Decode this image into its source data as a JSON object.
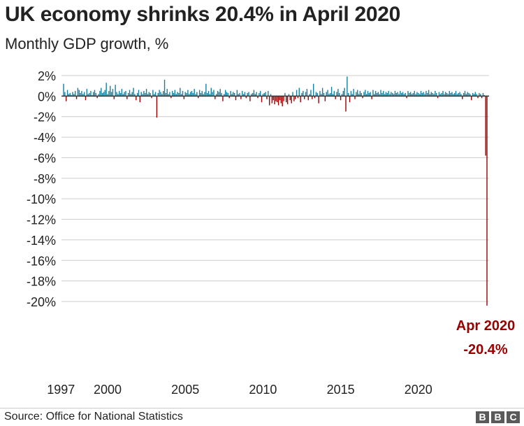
{
  "title": "UK economy shrinks 20.4% in April 2020",
  "subtitle": "Monthly GDP growth, %",
  "source": "Source: Office for National Statistics",
  "logo": [
    "B",
    "B",
    "C"
  ],
  "annotation": {
    "line1": "Apr 2020",
    "line2": "-20.4%"
  },
  "colors": {
    "positive": "#1380a1",
    "negative": "#990000",
    "grid": "#cccccc",
    "zero": "#333333",
    "annotation": "#990000"
  },
  "chart_data": {
    "type": "bar",
    "title": "UK economy shrinks 20.4% in April 2020",
    "subtitle": "Monthly GDP growth, %",
    "xlabel": "",
    "ylabel": "",
    "ylim": [
      -20,
      2
    ],
    "yticks": [
      2,
      0,
      -2,
      -4,
      -6,
      -8,
      -10,
      -12,
      -14,
      -16,
      -18,
      -20
    ],
    "ytick_labels": [
      "2%",
      "0%",
      "-2%",
      "-4%",
      "-6%",
      "-8%",
      "-10%",
      "-12%",
      "-14%",
      "-16%",
      "-18%",
      "-20%"
    ],
    "xtick_labels": [
      "1997",
      "2000",
      "2005",
      "2010",
      "2015",
      "2020"
    ],
    "xticks_year": [
      1997,
      2000,
      2005,
      2010,
      2015,
      2020
    ],
    "grid": true,
    "start": "1997-03",
    "values": [
      1.2,
      0.4,
      -0.5,
      0.6,
      0.2,
      0.3,
      0.1,
      0.4,
      0.2,
      0.5,
      -0.3,
      0.8,
      0.6,
      0.3,
      0.5,
      0.2,
      0.4,
      -0.4,
      0.7,
      0.2,
      0.3,
      0.5,
      0.1,
      0.4,
      0.6,
      0.3,
      -0.2,
      0.2,
      0.5,
      0.8,
      0.3,
      0.4,
      0.6,
      1.3,
      0.2,
      0.5,
      1.0,
      0.4,
      0.7,
      -0.3,
      1.1,
      0.4,
      0.2,
      0.5,
      0.3,
      0.7,
      0.2,
      0.4,
      0.5,
      -0.3,
      0.3,
      0.6,
      0.2,
      0.4,
      0.8,
      0.2,
      -0.4,
      0.3,
      0.6,
      -0.6,
      0.4,
      0.2,
      0.5,
      0.3,
      0.7,
      0.2,
      0.4,
      0.3,
      -0.2,
      0.6,
      0.2,
      0.4,
      -2.1,
      0.3,
      0.6,
      0.4,
      0.2,
      0.5,
      1.6,
      0.3,
      0.7,
      0.2,
      0.4,
      -0.2,
      0.5,
      0.3,
      0.6,
      0.2,
      0.4,
      0.3,
      0.8,
      0.2,
      0.5,
      -0.3,
      0.4,
      0.3,
      0.6,
      0.2,
      0.4,
      0.5,
      0.3,
      0.7,
      0.2,
      0.4,
      -0.2,
      0.6,
      0.3,
      0.5,
      0.2,
      0.4,
      1.2,
      0.3,
      0.5,
      0.2,
      0.8,
      0.4,
      0.6,
      -0.3,
      0.2,
      0.5,
      0.4,
      0.7,
      0.3,
      -0.5,
      0.2,
      0.6,
      0.4,
      0.3,
      -0.2,
      0.5,
      0.2,
      0.4,
      0.3,
      -0.4,
      0.6,
      0.2,
      0.3,
      -0.3,
      0.5,
      0.2,
      0.4,
      -0.2,
      0.3,
      0.4,
      -0.5,
      0.2,
      0.3,
      0.6,
      0.2,
      0.4,
      -0.2,
      0.3,
      0.5,
      -0.6,
      0.2,
      0.3,
      0.4,
      -0.3,
      0.5,
      -0.9,
      0.2,
      -0.7,
      -0.4,
      -0.8,
      -0.5,
      -0.6,
      -0.9,
      -0.4,
      -0.7,
      -1.0,
      -0.5,
      0.3,
      -0.6,
      -0.8,
      0.2,
      -0.4,
      -0.7,
      0.4,
      -0.5,
      -0.3,
      0.6,
      -0.2,
      0.8,
      -0.6,
      0.3,
      0.5,
      -0.3,
      0.4,
      0.7,
      -0.4,
      0.2,
      0.6,
      -0.3,
      1.2,
      -0.2,
      0.4,
      0.3,
      -0.7,
      0.5,
      0.2,
      0.8,
      0.3,
      -0.5,
      0.4,
      0.6,
      0.2,
      0.3,
      0.9,
      0.2,
      0.5,
      -0.3,
      0.4,
      0.7,
      0.3,
      -0.4,
      0.2,
      0.5,
      0.8,
      -1.5,
      1.9,
      0.3,
      -0.6,
      0.5,
      0.2,
      0.7,
      -0.3,
      0.4,
      0.6,
      0.2,
      0.5,
      0.3,
      -0.2,
      0.4,
      0.6,
      0.2,
      0.5,
      0.3,
      0.4,
      -0.3,
      0.6,
      0.2,
      0.5,
      0.3,
      0.4,
      0.2,
      0.6,
      0.3,
      0.5,
      0.2,
      0.4,
      0.3,
      0.5,
      0.2,
      0.4,
      0.3,
      0.2,
      0.5,
      0.3,
      0.4,
      0.2,
      0.5,
      0.3,
      0.4,
      0.2,
      0.3,
      -0.2,
      0.5,
      0.3,
      0.4,
      0.2,
      0.3,
      0.5,
      0.2,
      0.4,
      0.3,
      0.2,
      0.5,
      0.3,
      0.4,
      0.2,
      0.5,
      0.3,
      0.6,
      0.2,
      0.4,
      0.3,
      0.2,
      0.5,
      0.3,
      -0.2,
      0.4,
      0.2,
      0.3,
      0.5,
      0.2,
      0.4,
      0.3,
      0.2,
      0.5,
      0.3,
      0.4,
      0.2,
      0.3,
      0.5,
      0.2,
      0.3,
      0.4,
      0.2,
      -0.3,
      0.3,
      0.5,
      0.2,
      0.4,
      0.3,
      0.2,
      -0.4,
      0.3,
      0.2,
      0.4,
      0.2,
      -0.2,
      0.3,
      0.2,
      -0.2,
      0.3,
      0.1,
      -5.8,
      -20.4
    ]
  }
}
